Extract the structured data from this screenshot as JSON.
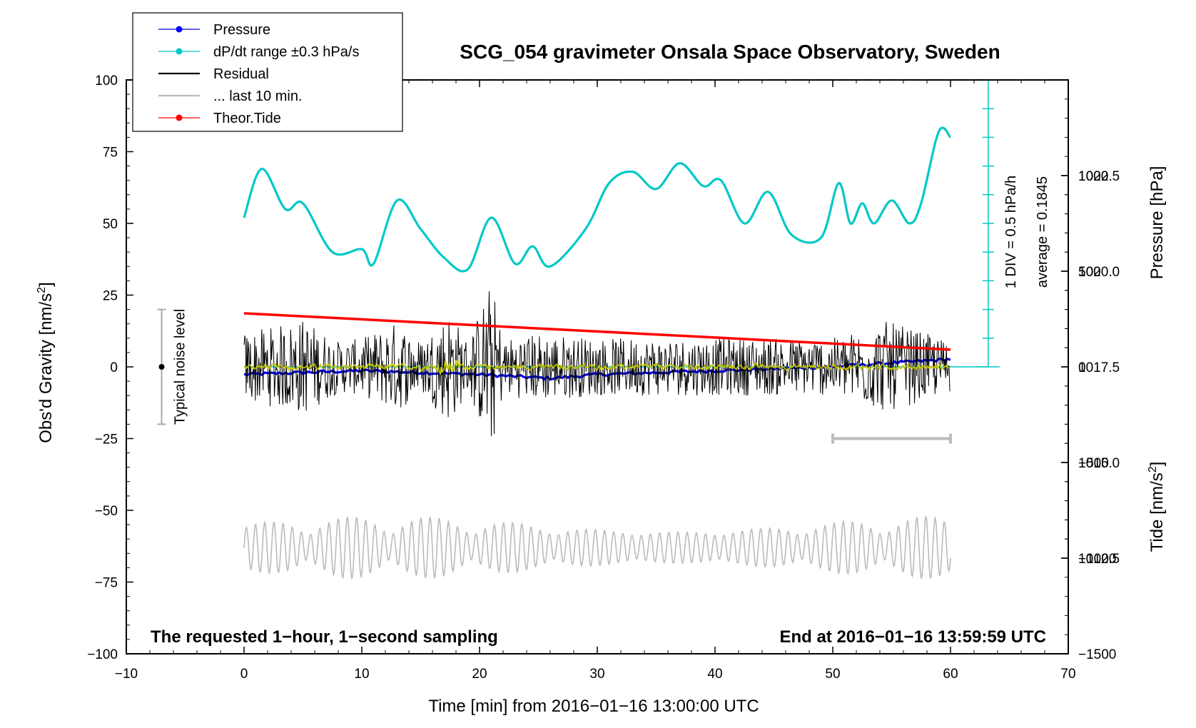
{
  "chart_data": {
    "type": "line",
    "title": "SCG_054 gravimeter Onsala Space Observatory, Sweden",
    "xlabel": "Time [min] from 2016−01−16 13:00:00 UTC",
    "ylabel_left": "Obs'd Gravity [nm/s",
    "ylabel_left_sup": "2",
    "ylabel_left_end": "]",
    "ylabel_right_pressure": "Pressure [hPa]",
    "ylabel_right_tide": "Tide [nm/s",
    "ylabel_right_tide_sup": "2",
    "ylabel_right_tide_end": "]",
    "xlim": [
      -10,
      70
    ],
    "ylim_left": [
      -100,
      100
    ],
    "pressure_ylim": [
      1010.0,
      1025.0
    ],
    "tide_ylim": [
      -1500,
      1500
    ],
    "x_ticks": [
      "−10",
      "0",
      "10",
      "20",
      "30",
      "40",
      "50",
      "60",
      "70"
    ],
    "y_ticks_left": [
      "100",
      "75",
      "50",
      "25",
      "0",
      "−25",
      "−50",
      "−75",
      "−100"
    ],
    "y_ticks_pressure": [
      "1022.5",
      "1020.0",
      "1017.5",
      "1015.0",
      "1012.5"
    ],
    "y_ticks_tide": [
      "1000",
      "500",
      "0",
      "−500",
      "−1000",
      "−1500"
    ],
    "legend_position": "top-left",
    "legend": [
      {
        "label": "Pressure",
        "color": "#0000ff",
        "style": "line-dot"
      },
      {
        "label": "dP/dt range ±0.3 hPa/s",
        "color": "#00c8c8",
        "style": "line-dot"
      },
      {
        "label": "Residual",
        "color": "#000000",
        "style": "line"
      },
      {
        "label": "... last 10 min.",
        "color": "#bbbbbb",
        "style": "line"
      },
      {
        "label": "Theor.Tide",
        "color": "#ff0000",
        "style": "line-dot"
      }
    ],
    "series": [
      {
        "name": "Pressure",
        "color": "#0000ff",
        "axis": "pressure",
        "x": [
          0,
          10,
          20,
          26,
          30,
          40,
          50,
          55,
          60
        ],
        "y": [
          1017.3,
          1017.4,
          1017.3,
          1017.2,
          1017.3,
          1017.4,
          1017.5,
          1017.6,
          1017.7
        ]
      },
      {
        "name": "dP/dt range ±0.3 hPa/s",
        "color": "#00c8c8",
        "axis": "left",
        "x": [
          0,
          1.5,
          3.5,
          5,
          7.5,
          10,
          11,
          13,
          15,
          17,
          19,
          21,
          23,
          24.5,
          26,
          29,
          31,
          33,
          35,
          37,
          39,
          40.5,
          42.5,
          44.5,
          46.5,
          49,
          50.5,
          51.5,
          52.5,
          53.5,
          55,
          56.5,
          57.5,
          59,
          60
        ],
        "y": [
          52,
          69,
          55,
          57,
          40,
          41,
          36,
          58,
          48,
          38,
          34,
          52,
          36,
          42,
          35,
          48,
          64,
          68,
          62,
          71,
          63,
          65,
          50,
          61,
          46,
          45,
          64,
          50,
          57,
          50,
          58,
          50,
          57,
          82,
          80
        ]
      },
      {
        "name": "Residual",
        "color": "#000000",
        "axis": "left",
        "x": [
          0,
          60
        ],
        "y": [
          0,
          0
        ],
        "envelope_x": [
          0,
          3.5,
          5,
          8,
          10,
          13,
          15,
          17.5,
          19,
          21,
          22,
          25,
          30,
          40,
          50,
          54.5,
          60
        ],
        "envelope_y": [
          12,
          15,
          17,
          9,
          10,
          16,
          9,
          20,
          9,
          30,
          10,
          12,
          10,
          10,
          10,
          16,
          9
        ]
      },
      {
        "name": "... last 10 min.",
        "color": "#bbbbbb",
        "axis": "left",
        "x": [
          0,
          60
        ],
        "y": [
          -63,
          -63
        ]
      },
      {
        "name": "Theor.Tide",
        "color": "#ff0000",
        "axis": "tide",
        "x": [
          0,
          60
        ],
        "y": [
          280,
          90
        ]
      }
    ],
    "annotations": {
      "noise_label": "Typical noise level",
      "noise_range": [
        -20,
        20
      ],
      "noise_x": -7,
      "pressure_scale_1": "1 DIV = 0.5 hPa/h",
      "pressure_scale_2": "average = 0.1845",
      "bottom_left_note": "The requested 1−hour, 1−second sampling",
      "bottom_right_note": "End at 2016−01−16 13:59:59 UTC",
      "last10_bracket_x": [
        50,
        60
      ],
      "last10_bracket_y": -25
    }
  }
}
